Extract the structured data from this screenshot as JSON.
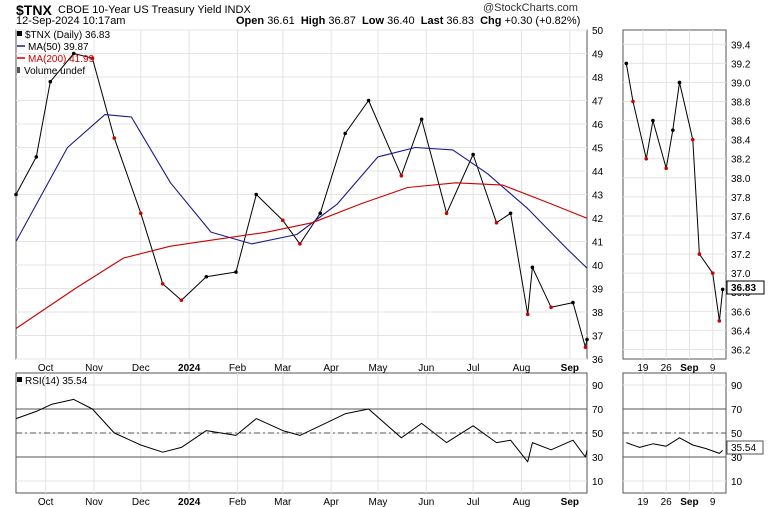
{
  "header": {
    "ticker": "$TNX",
    "subtitle": "CBOE 10-Year US Treasury Yield INDX",
    "date": "12-Sep-2024 10:17am",
    "watermark": "@StockCharts.com",
    "open_label": "Open",
    "open": "36.61",
    "high_label": "High",
    "high": "36.87",
    "low_label": "Low",
    "low": "36.40",
    "last_label": "Last",
    "last": "36.83",
    "chg_label": "Chg",
    "chg": "+0.30 (+0.82%)"
  },
  "legend": {
    "price": "$TNX (Daily) 36.83",
    "ma50": "MA(50) 39.87",
    "ma200": "MA(200) 41.99",
    "volume": "Volume undef"
  },
  "rsi_legend": "RSI(14) 35.54",
  "colors": {
    "up": "#000000",
    "down": "#cc0000",
    "ma50": "#1a1a8c",
    "ma200": "#cc0000",
    "last_box": "#f5f090"
  },
  "chart_data": [
    {
      "type": "line",
      "title": "$TNX (Daily)",
      "x_tick_labels": [
        "Oct",
        "Nov",
        "Dec",
        "2024",
        "Feb",
        "Mar",
        "Apr",
        "May",
        "Jun",
        "Jul",
        "Aug",
        "Sep"
      ],
      "y_tick_labels": [
        "36",
        "37",
        "38",
        "39",
        "40",
        "41",
        "42",
        "43",
        "44",
        "45",
        "46",
        "47",
        "48",
        "49",
        "50"
      ],
      "ylim": [
        36,
        50
      ],
      "series": [
        {
          "name": "$TNX (Daily)",
          "x": [
            "2023-09-12",
            "2023-09-25",
            "2023-10-04",
            "2023-10-19",
            "2023-10-31",
            "2023-11-14",
            "2023-12-01",
            "2023-12-15",
            "2023-12-27",
            "2024-01-12",
            "2024-01-31",
            "2024-02-13",
            "2024-03-01",
            "2024-03-12",
            "2024-03-25",
            "2024-04-10",
            "2024-04-25",
            "2024-05-16",
            "2024-05-29",
            "2024-06-14",
            "2024-07-01",
            "2024-07-16",
            "2024-07-25",
            "2024-08-05",
            "2024-08-08",
            "2024-08-20",
            "2024-09-03",
            "2024-09-11",
            "2024-09-12"
          ],
          "values": [
            43.0,
            44.6,
            47.8,
            49.0,
            48.8,
            45.4,
            42.2,
            39.2,
            38.5,
            39.5,
            39.7,
            43.0,
            41.9,
            40.9,
            42.2,
            45.6,
            47.0,
            43.8,
            46.2,
            42.2,
            44.7,
            41.8,
            42.2,
            37.9,
            39.9,
            38.2,
            38.4,
            36.5,
            36.83
          ]
        },
        {
          "name": "MA(50)",
          "x": [
            "2023-09-12",
            "2023-10-15",
            "2023-11-08",
            "2023-11-25",
            "2023-12-20",
            "2024-01-15",
            "2024-02-10",
            "2024-03-10",
            "2024-04-05",
            "2024-05-01",
            "2024-05-25",
            "2024-06-18",
            "2024-07-10",
            "2024-08-05",
            "2024-08-30",
            "2024-09-12"
          ],
          "values": [
            41.0,
            45.0,
            46.4,
            46.3,
            43.5,
            41.4,
            40.9,
            41.3,
            42.6,
            44.6,
            45.0,
            44.9,
            43.9,
            42.4,
            40.7,
            39.87
          ]
        },
        {
          "name": "MA(200)",
          "x": [
            "2023-09-12",
            "2023-10-20",
            "2023-11-20",
            "2023-12-20",
            "2024-01-20",
            "2024-02-20",
            "2024-03-20",
            "2024-04-20",
            "2024-05-20",
            "2024-06-20",
            "2024-07-20",
            "2024-08-20",
            "2024-09-12"
          ],
          "values": [
            37.3,
            39.0,
            40.3,
            40.8,
            41.1,
            41.4,
            41.8,
            42.6,
            43.3,
            43.5,
            43.4,
            42.6,
            41.99
          ]
        }
      ]
    },
    {
      "type": "line",
      "title": "RSI(14)",
      "x_tick_labels": [
        "Oct",
        "Nov",
        "Dec",
        "2024",
        "Feb",
        "Mar",
        "Apr",
        "May",
        "Jun",
        "Jul",
        "Aug",
        "Sep"
      ],
      "y_tick_labels": [
        "10",
        "30",
        "50",
        "70",
        "90"
      ],
      "ylim": [
        0,
        100
      ],
      "reference_lines": [
        30,
        50,
        70
      ],
      "series": [
        {
          "name": "RSI(14)",
          "x": [
            "2023-09-12",
            "2023-09-25",
            "2023-10-05",
            "2023-10-19",
            "2023-10-31",
            "2023-11-14",
            "2023-12-01",
            "2023-12-15",
            "2023-12-27",
            "2024-01-12",
            "2024-01-31",
            "2024-02-13",
            "2024-03-01",
            "2024-03-12",
            "2024-03-25",
            "2024-04-10",
            "2024-04-25",
            "2024-05-16",
            "2024-05-29",
            "2024-06-14",
            "2024-07-01",
            "2024-07-16",
            "2024-07-25",
            "2024-08-05",
            "2024-08-08",
            "2024-08-20",
            "2024-09-03",
            "2024-09-11",
            "2024-09-12"
          ],
          "values": [
            62,
            68,
            74,
            78,
            70,
            50,
            40,
            34,
            38,
            52,
            48,
            62,
            52,
            48,
            56,
            66,
            70,
            46,
            58,
            42,
            56,
            42,
            44,
            26,
            42,
            36,
            44,
            30,
            35.54
          ]
        }
      ]
    },
    {
      "type": "line",
      "title": "$TNX detail",
      "x_tick_labels": [
        "19",
        "26",
        "Sep",
        "9"
      ],
      "y_tick_labels": [
        "36.2",
        "36.4",
        "36.6",
        "36.8",
        "37.0",
        "37.2",
        "37.4",
        "37.6",
        "37.8",
        "38.0",
        "38.2",
        "38.4",
        "38.6",
        "38.8",
        "39.0",
        "39.2",
        "39.4"
      ],
      "ylim": [
        36.1,
        39.55
      ],
      "series": [
        {
          "name": "$TNX (Daily)",
          "x": [
            "2024-08-14",
            "2024-08-16",
            "2024-08-20",
            "2024-08-22",
            "2024-08-26",
            "2024-08-28",
            "2024-08-30",
            "2024-09-03",
            "2024-09-05",
            "2024-09-09",
            "2024-09-11",
            "2024-09-12"
          ],
          "values": [
            39.2,
            38.8,
            38.2,
            38.6,
            38.1,
            38.5,
            39.0,
            38.4,
            37.2,
            37.0,
            36.5,
            36.83
          ]
        }
      ]
    },
    {
      "type": "line",
      "title": "RSI detail",
      "x_tick_labels": [
        "19",
        "26",
        "Sep",
        "9"
      ],
      "y_tick_labels": [
        "10",
        "30",
        "50",
        "70",
        "90"
      ],
      "ylim": [
        0,
        100
      ],
      "reference_lines": [
        30,
        50,
        70
      ],
      "series": [
        {
          "name": "RSI(14)",
          "x": [
            "2024-08-14",
            "2024-08-18",
            "2024-08-22",
            "2024-08-26",
            "2024-08-30",
            "2024-09-03",
            "2024-09-07",
            "2024-09-11",
            "2024-09-12"
          ],
          "values": [
            42,
            38,
            41,
            39,
            46,
            40,
            37,
            33,
            35.54
          ]
        }
      ]
    }
  ]
}
